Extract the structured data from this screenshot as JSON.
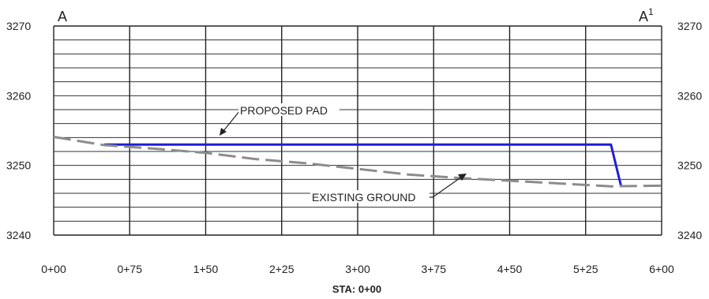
{
  "section": {
    "start_label": "A",
    "end_label": "A",
    "end_label_superscript": "1",
    "x_axis_title": "STA: 0+00",
    "callouts": {
      "proposed": "PROPOSED PAD",
      "existing": "EXISTING GROUND"
    }
  },
  "chart_data": {
    "type": "line",
    "title": "",
    "xlabel": "STA: 0+00",
    "ylabel": "",
    "xlim": [
      0,
      600
    ],
    "ylim": [
      3240,
      3270
    ],
    "x_ticks": [
      0,
      75,
      150,
      225,
      300,
      375,
      450,
      525,
      600
    ],
    "x_tick_labels": [
      "0+00",
      "0+75",
      "1+50",
      "2+25",
      "3+00",
      "3+75",
      "4+50",
      "5+25",
      "6+00"
    ],
    "y_ticks": [
      3240,
      3250,
      3260,
      3270
    ],
    "y_tick_labels": [
      "3240",
      "3250",
      "3260",
      "3270"
    ],
    "major_grid_x": 75,
    "minor_grid_y": 2,
    "grid": true,
    "series": [
      {
        "name": "PROPOSED PAD",
        "color": "#1f1fd6",
        "style": "solid",
        "x": [
          50,
          550,
          560
        ],
        "y": [
          3253,
          3253,
          3247
        ]
      },
      {
        "name": "EXISTING GROUND",
        "color": "#8c8c8c",
        "style": "dashed",
        "x": [
          0,
          50,
          100,
          150,
          200,
          250,
          300,
          350,
          400,
          450,
          500,
          550,
          600
        ],
        "y": [
          3254.1,
          3252.9,
          3252.4,
          3251.8,
          3250.9,
          3250.3,
          3249.5,
          3248.7,
          3248.2,
          3247.8,
          3247.4,
          3247.0,
          3247.1
        ]
      }
    ]
  }
}
